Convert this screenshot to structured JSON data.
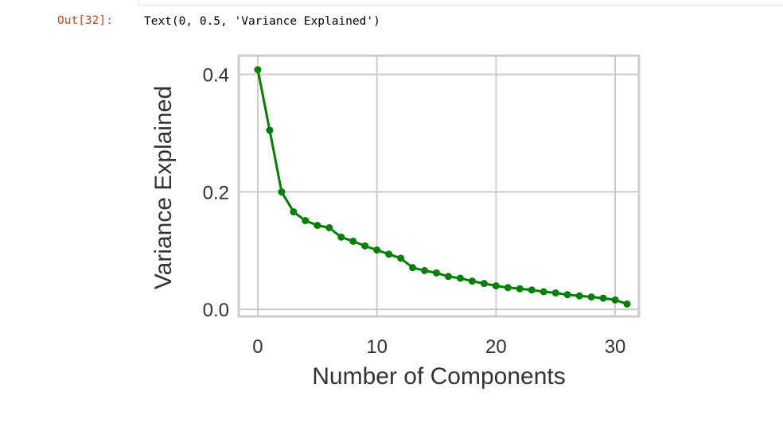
{
  "cell": {
    "prompt": "Out[32]:",
    "output_text": "Text(0, 0.5, 'Variance Explained')"
  },
  "chart_data": {
    "type": "line",
    "xlabel": "Number of Components",
    "ylabel": "Variance Explained",
    "xlim": [
      -1.6,
      32.0
    ],
    "ylim": [
      -0.012,
      0.432
    ],
    "xticks": [
      0,
      10,
      20,
      30
    ],
    "xtick_labels": [
      "0",
      "10",
      "20",
      "30"
    ],
    "yticks": [
      0.0,
      0.2,
      0.4
    ],
    "ytick_labels": [
      "0.0",
      "0.2",
      "0.4"
    ],
    "grid": true,
    "series": [
      {
        "color": "#008000",
        "marker": "circle",
        "x": [
          0,
          1,
          2,
          3,
          4,
          5,
          6,
          7,
          8,
          9,
          10,
          11,
          12,
          13,
          14,
          15,
          16,
          17,
          18,
          19,
          20,
          21,
          22,
          23,
          24,
          25,
          26,
          27,
          28,
          29,
          30,
          31
        ],
        "y": [
          0.408,
          0.305,
          0.2,
          0.166,
          0.151,
          0.143,
          0.139,
          0.123,
          0.116,
          0.108,
          0.101,
          0.094,
          0.087,
          0.071,
          0.066,
          0.062,
          0.056,
          0.053,
          0.048,
          0.044,
          0.04,
          0.037,
          0.035,
          0.033,
          0.03,
          0.028,
          0.025,
          0.023,
          0.021,
          0.019,
          0.016,
          0.009
        ]
      }
    ]
  }
}
